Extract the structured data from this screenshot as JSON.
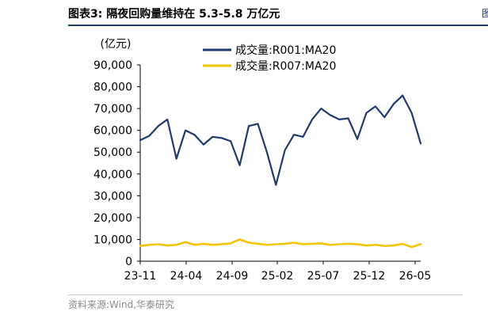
{
  "header": {
    "title": "图表3:  隔夜回购量维持在 5.3-5.8 万亿元"
  },
  "footer": {
    "source": "资料来源:Wind,华泰研究"
  },
  "chart_data": {
    "type": "line",
    "y_unit_label": "(亿元)",
    "ylim": [
      0,
      90000
    ],
    "yticks": [
      "0",
      "10,000",
      "20,000",
      "30,000",
      "40,000",
      "50,000",
      "60,000",
      "70,000",
      "80,000",
      "90,000"
    ],
    "ytick_values": [
      0,
      10000,
      20000,
      30000,
      40000,
      50000,
      60000,
      70000,
      80000,
      90000
    ],
    "xticks": [
      "23-11",
      "24-04",
      "24-09",
      "25-02",
      "25-07",
      "25-12",
      "26-05"
    ],
    "grid": false,
    "legend_position": "top",
    "series": [
      {
        "name": "成交量:R001:MA20",
        "color": "#1f3a6e",
        "x": [
          "23-11",
          "23-12",
          "24-01",
          "24-02",
          "24-03",
          "24-04",
          "24-05",
          "24-06",
          "24-07",
          "24-08",
          "24-09",
          "24-10",
          "24-11",
          "24-12",
          "25-01",
          "25-02",
          "25-03",
          "25-04",
          "25-05",
          "25-06",
          "25-07",
          "25-08",
          "25-09",
          "25-10",
          "25-11",
          "25-12",
          "26-01",
          "26-02",
          "26-03",
          "26-04",
          "26-05",
          "26-06"
        ],
        "values": [
          55500,
          57500,
          62000,
          65000,
          47000,
          60000,
          58000,
          53500,
          57000,
          56500,
          55000,
          44000,
          62000,
          63000,
          50000,
          35000,
          51000,
          58000,
          57000,
          65000,
          70000,
          67000,
          65000,
          65500,
          56000,
          68000,
          71000,
          66000,
          72000,
          76000,
          68000,
          54000
        ]
      },
      {
        "name": "成交量:R007:MA20",
        "color": "#f5c400",
        "x": [
          "23-11",
          "23-12",
          "24-01",
          "24-02",
          "24-03",
          "24-04",
          "24-05",
          "24-06",
          "24-07",
          "24-08",
          "24-09",
          "24-10",
          "24-11",
          "24-12",
          "25-01",
          "25-02",
          "25-03",
          "25-04",
          "25-05",
          "25-06",
          "25-07",
          "25-08",
          "25-09",
          "25-10",
          "25-11",
          "25-12",
          "26-01",
          "26-02",
          "26-03",
          "26-04",
          "26-05",
          "26-06"
        ],
        "values": [
          7000,
          7500,
          7800,
          7200,
          7500,
          8800,
          7500,
          8000,
          7500,
          7800,
          8200,
          10000,
          8500,
          8000,
          7500,
          7800,
          8000,
          8500,
          7800,
          8000,
          8200,
          7500,
          7800,
          8000,
          7800,
          7200,
          7500,
          7000,
          7200,
          8000,
          6500,
          7800
        ]
      }
    ]
  }
}
